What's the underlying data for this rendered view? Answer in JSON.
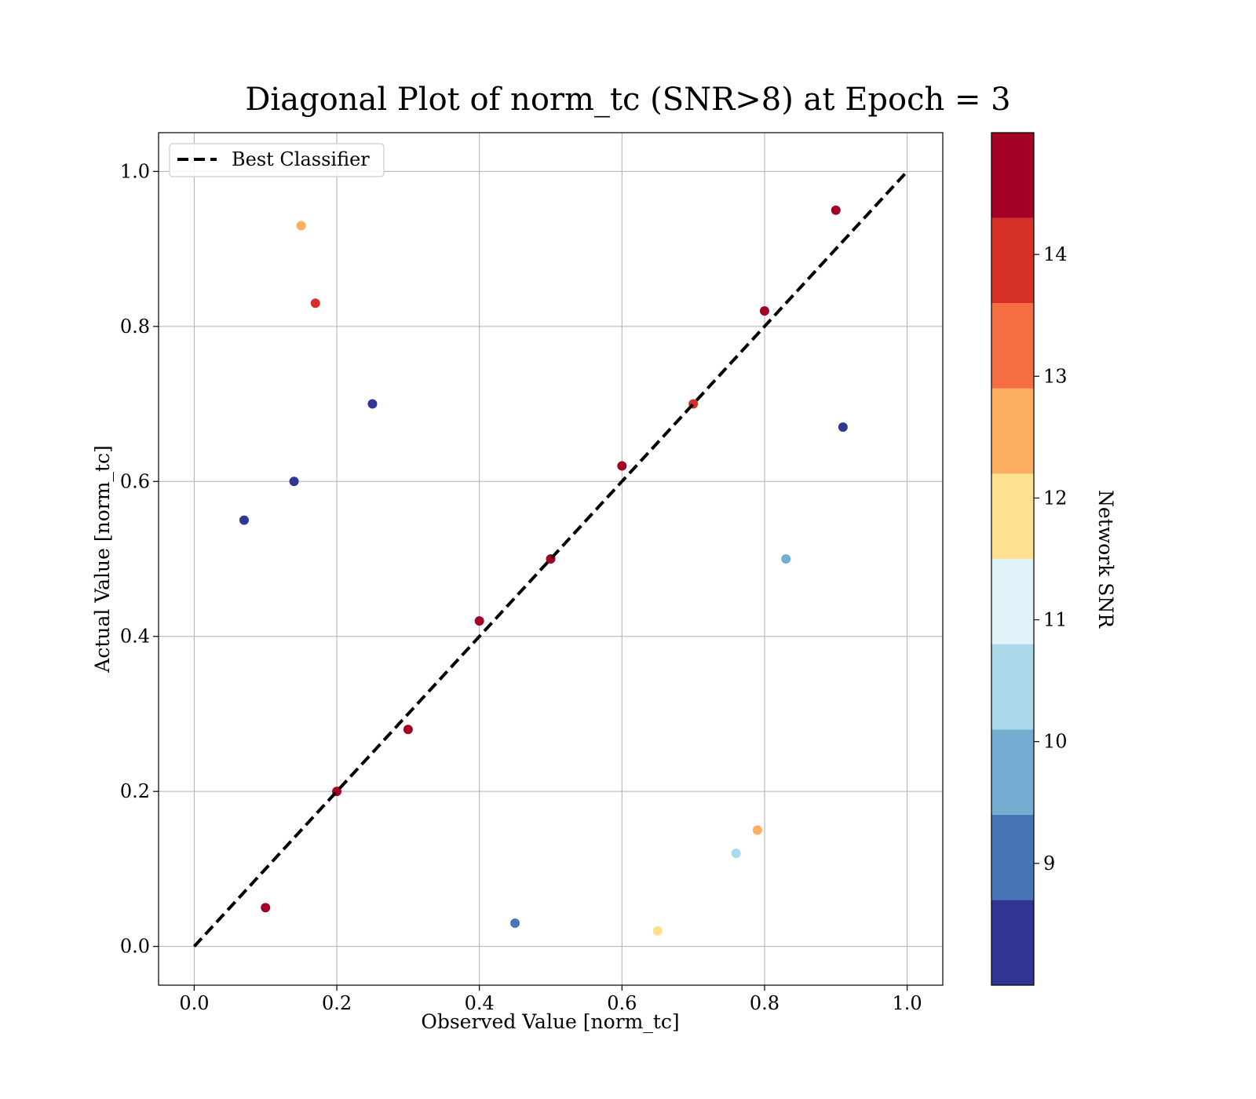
{
  "chart_data": {
    "type": "scatter",
    "title": "Diagonal Plot of norm_tc (SNR>8) at Epoch = 3",
    "xlabel": "Observed Value [norm_tc]",
    "ylabel": "Actual Value [norm_tc]",
    "xlim": [
      -0.05,
      1.05
    ],
    "ylim": [
      -0.05,
      1.05
    ],
    "xticks": [
      0.0,
      0.2,
      0.4,
      0.6,
      0.8,
      1.0
    ],
    "yticks": [
      0.0,
      0.2,
      0.4,
      0.6,
      0.8,
      1.0
    ],
    "xtick_labels": [
      "0.0",
      "0.2",
      "0.4",
      "0.6",
      "0.8",
      "1.0"
    ],
    "ytick_labels": [
      "0.0",
      "0.2",
      "0.4",
      "0.6",
      "0.8",
      "1.0"
    ],
    "grid": true,
    "legend": {
      "placement": "top-left",
      "entries": [
        {
          "label": "Best Classifier",
          "style": "dashed",
          "color": "#000000"
        }
      ]
    },
    "reference_line": {
      "label": "Best Classifier",
      "x": [
        0.0,
        1.0
      ],
      "y": [
        0.0,
        1.0
      ]
    },
    "colorbar": {
      "label": "Network SNR",
      "range": [
        8,
        15
      ],
      "ticks": [
        9,
        10,
        11,
        12,
        13,
        14
      ],
      "tick_labels": [
        "9",
        "10",
        "11",
        "12",
        "13",
        "14"
      ],
      "colors": [
        "#313695",
        "#4575b4",
        "#74add1",
        "#abd9e9",
        "#e0f3f8",
        "#fee090",
        "#fdae61",
        "#f46d43",
        "#d73027",
        "#a50026"
      ]
    },
    "points": [
      {
        "x": 0.1,
        "y": 0.05,
        "snr": 14.8
      },
      {
        "x": 0.2,
        "y": 0.2,
        "snr": 14.5
      },
      {
        "x": 0.3,
        "y": 0.28,
        "snr": 14.6
      },
      {
        "x": 0.4,
        "y": 0.42,
        "snr": 14.7
      },
      {
        "x": 0.5,
        "y": 0.5,
        "snr": 14.4
      },
      {
        "x": 0.6,
        "y": 0.62,
        "snr": 14.9
      },
      {
        "x": 0.7,
        "y": 0.7,
        "snr": 14.2
      },
      {
        "x": 0.8,
        "y": 0.82,
        "snr": 14.6
      },
      {
        "x": 0.9,
        "y": 0.95,
        "snr": 14.8
      },
      {
        "x": 0.15,
        "y": 0.93,
        "snr": 12.5
      },
      {
        "x": 0.25,
        "y": 0.7,
        "snr": 8.5
      },
      {
        "x": 0.07,
        "y": 0.55,
        "snr": 8.3
      },
      {
        "x": 0.79,
        "y": 0.15,
        "snr": 12.4
      },
      {
        "x": 0.76,
        "y": 0.12,
        "snr": 10.5
      },
      {
        "x": 0.65,
        "y": 0.02,
        "snr": 11.8
      },
      {
        "x": 0.91,
        "y": 0.67,
        "snr": 8.4
      },
      {
        "x": 0.83,
        "y": 0.5,
        "snr": 9.5
      },
      {
        "x": 0.14,
        "y": 0.6,
        "snr": 8.2
      },
      {
        "x": 0.17,
        "y": 0.83,
        "snr": 14.1
      },
      {
        "x": 0.45,
        "y": 0.03,
        "snr": 9.2
      }
    ]
  }
}
